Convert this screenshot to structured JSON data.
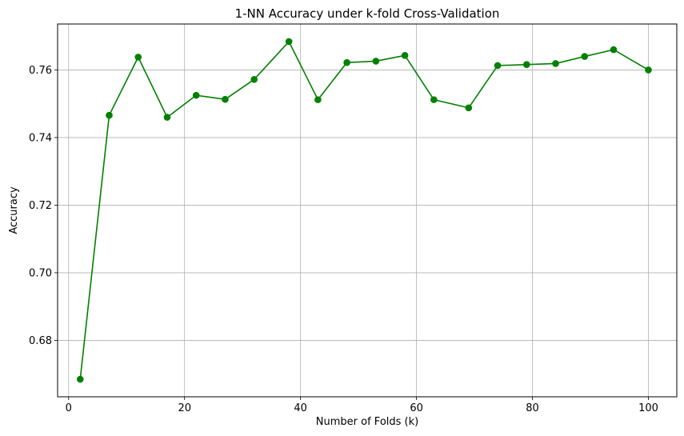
{
  "chart_data": {
    "type": "line",
    "title": "1-NN Accuracy under k-fold Cross-Validation",
    "xlabel": "Number of Folds (k)",
    "ylabel": "Accuracy",
    "xlim": [
      -1.9,
      104.9
    ],
    "ylim": [
      0.6633,
      0.7736
    ],
    "xticks": [
      0,
      20,
      40,
      60,
      80,
      100
    ],
    "yticks": [
      0.68,
      0.7,
      0.72,
      0.74,
      0.76
    ],
    "ytick_labels": [
      "0.68",
      "0.70",
      "0.72",
      "0.74",
      "0.76"
    ],
    "grid": true,
    "series": [
      {
        "color": "#008000",
        "marker": "circle",
        "x": [
          2,
          7,
          12,
          17,
          22,
          27,
          32,
          38,
          43,
          48,
          53,
          58,
          63,
          69,
          74,
          79,
          84,
          89,
          94,
          100
        ],
        "y": [
          0.6685,
          0.7466,
          0.7638,
          0.746,
          0.7525,
          0.7513,
          0.7572,
          0.7684,
          0.7512,
          0.7622,
          0.7626,
          0.7643,
          0.7512,
          0.7488,
          0.7613,
          0.7616,
          0.7619,
          0.764,
          0.766,
          0.76
        ]
      }
    ]
  }
}
